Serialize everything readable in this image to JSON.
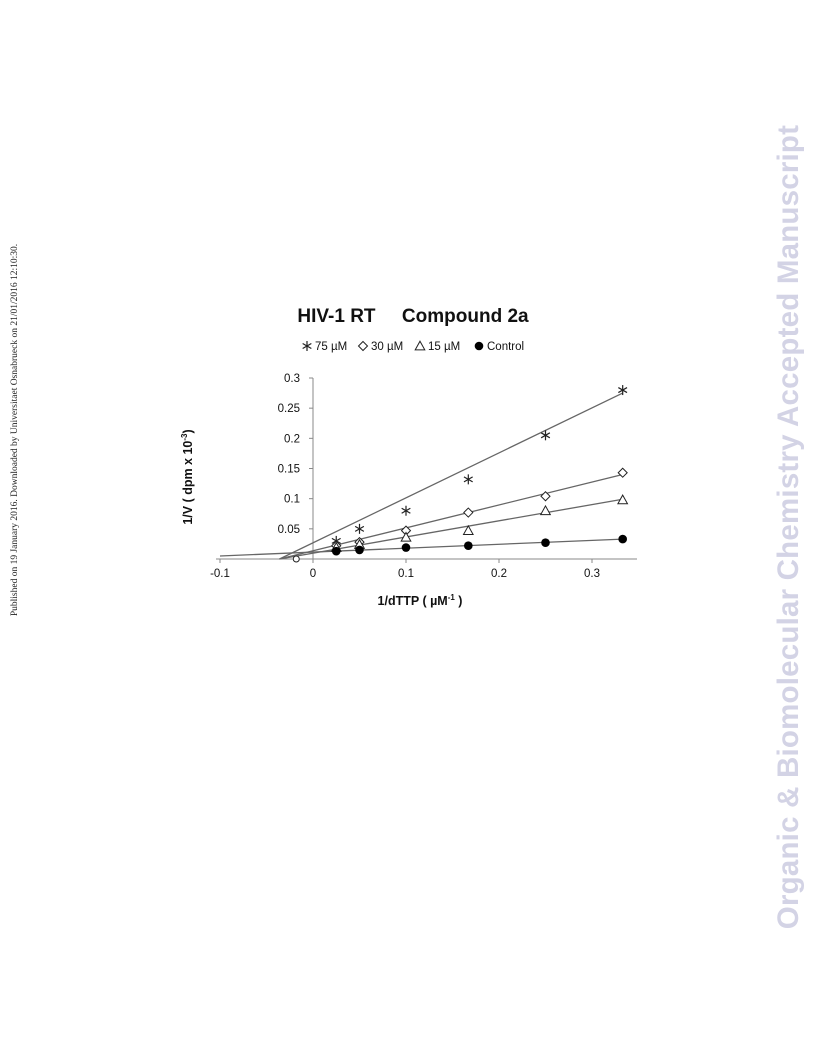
{
  "page": {
    "side_note": "Published on 19 January 2016. Downloaded by Universitaet Osnabrueck on 21/01/2016 12:10:30.",
    "watermark": "Organic & Biomolecular Chemistry Accepted Manuscript"
  },
  "chart_data": {
    "type": "scatter",
    "title": "HIV-1 RT     Compound 2a",
    "xlabel": "1/dTTP  ( µM⁻¹ )",
    "ylabel": "1/V  ( dpm x 10⁻³)",
    "xlim": [
      -0.1,
      0.35
    ],
    "ylim": [
      0,
      0.3
    ],
    "x_ticks": [
      -0.1,
      0,
      0.1,
      0.2,
      0.3
    ],
    "x_tick_labels": [
      "-0.1",
      "0",
      "0.1",
      "0.2",
      "0.3"
    ],
    "y_ticks": [
      0.05,
      0.1,
      0.15,
      0.2,
      0.25,
      0.3
    ],
    "y_tick_labels": [
      "0.05",
      "0.1",
      "0.15",
      "0.2",
      "0.25",
      "0.3"
    ],
    "grid": false,
    "legend_position": "top",
    "series": [
      {
        "name": "75 µM",
        "marker": "asterisk",
        "x": [
          0.025,
          0.05,
          0.1,
          0.167,
          0.25,
          0.333
        ],
        "y": [
          0.03,
          0.05,
          0.08,
          0.132,
          0.205,
          0.28
        ],
        "fit": [
          [
            -0.036,
            0.0
          ],
          [
            0.333,
            0.275
          ]
        ]
      },
      {
        "name": "30 µM",
        "marker": "diamond",
        "x": [
          0.025,
          0.05,
          0.1,
          0.167,
          0.25,
          0.333
        ],
        "y": [
          0.022,
          0.028,
          0.047,
          0.077,
          0.104,
          0.143
        ],
        "fit": [
          [
            -0.036,
            0.0
          ],
          [
            0.333,
            0.14
          ]
        ]
      },
      {
        "name": "15 µM",
        "marker": "triangle",
        "x": [
          0.025,
          0.05,
          0.1,
          0.167,
          0.25,
          0.333
        ],
        "y": [
          0.019,
          0.024,
          0.036,
          0.047,
          0.08,
          0.098
        ],
        "fit": [
          [
            -0.036,
            0.0
          ],
          [
            0.333,
            0.099
          ]
        ]
      },
      {
        "name": "Control",
        "marker": "filled-circle",
        "x": [
          0.025,
          0.05,
          0.1,
          0.167,
          0.25,
          0.333
        ],
        "y": [
          0.013,
          0.015,
          0.019,
          0.022,
          0.027,
          0.033
        ],
        "fit": [
          [
            -0.1,
            0.005
          ],
          [
            0.333,
            0.033
          ]
        ]
      }
    ],
    "extra_points": [
      {
        "x": -0.018,
        "y": 0.0,
        "marker": "hollow-circle"
      }
    ],
    "colors": {
      "line": "#666666",
      "marker": "#222222",
      "axis": "#888888"
    }
  }
}
